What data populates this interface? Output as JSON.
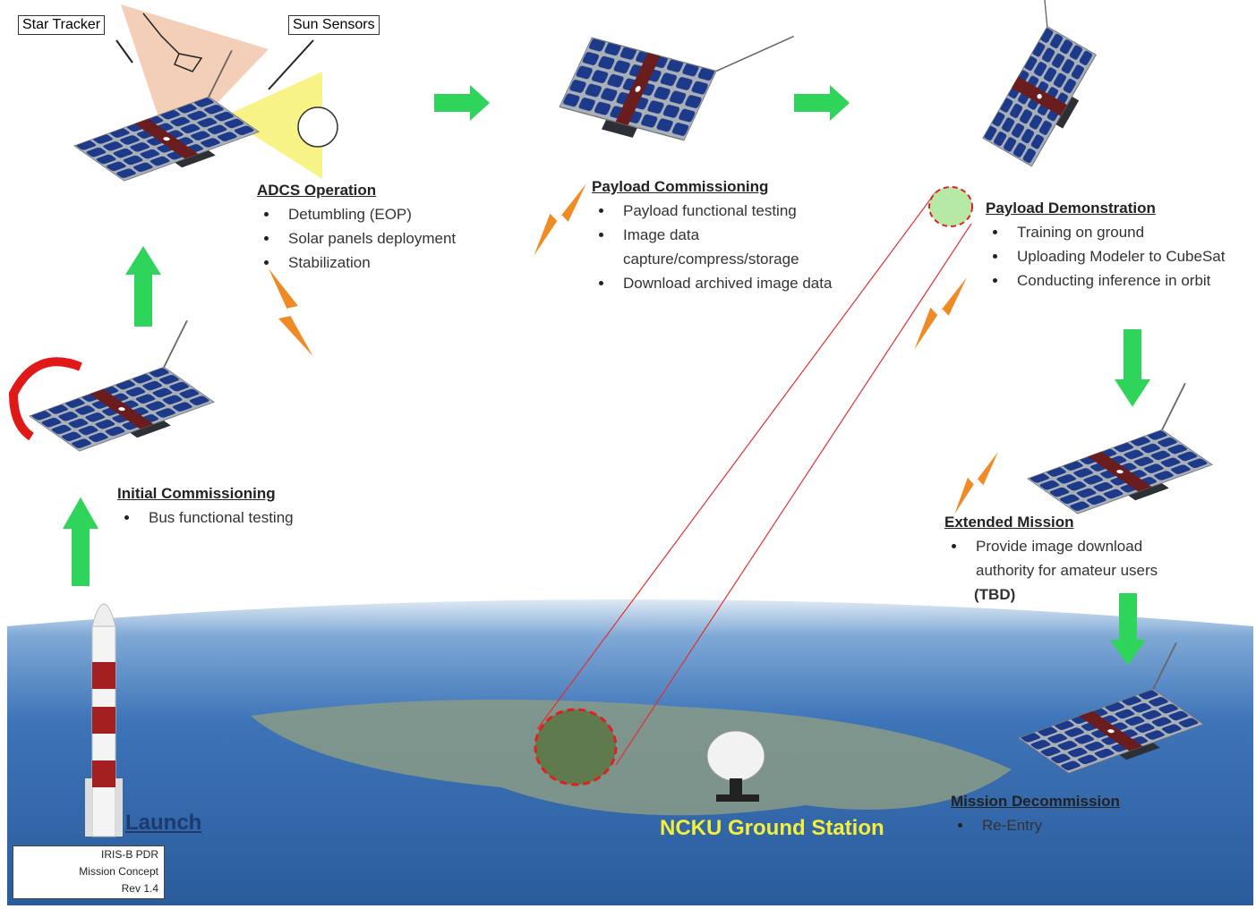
{
  "labels": {
    "star_tracker": "Star Tracker",
    "sun_sensors": "Sun Sensors"
  },
  "phases": [
    {
      "title": "ADCS Operation",
      "items": [
        "Detumbling (EOP)",
        "Solar panels deployment",
        "Stabilization"
      ]
    },
    {
      "title": "Payload Commissioning",
      "items": [
        "Payload functional testing",
        "Image data capture/compress/storage",
        "Download archived image data"
      ]
    },
    {
      "title": "Payload Demonstration",
      "items": [
        "Training on ground",
        "Uploading Modeler to CubeSat",
        "Conducting inference in orbit"
      ]
    },
    {
      "title": "Initial Commissioning",
      "items": [
        "Bus functional testing"
      ]
    },
    {
      "title": "Extended Mission",
      "items": [
        "Provide image download authority for amateur users"
      ],
      "note": "(TBD)"
    },
    {
      "title": "Mission Decommission",
      "items": [
        "Re-Entry"
      ]
    }
  ],
  "launch": "Launch",
  "ground_station": "NCKU Ground Station",
  "revision": [
    "IRIS-B PDR",
    "Mission Concept",
    "Rev 1.4"
  ]
}
